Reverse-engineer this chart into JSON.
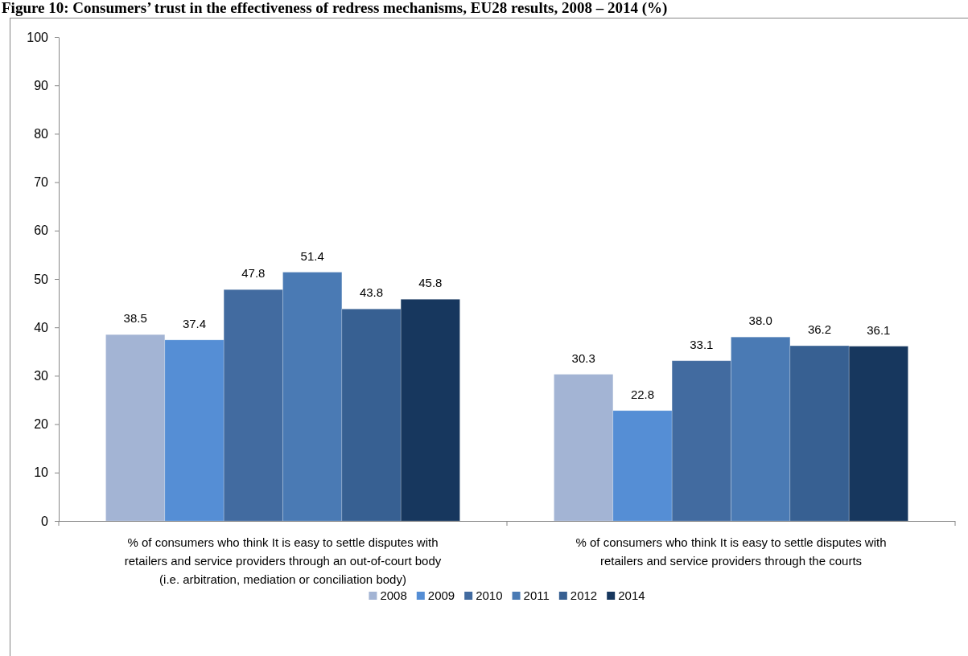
{
  "chart_data": {
    "type": "bar",
    "title": "Figure 10: Consumers’ trust in the effectiveness of redress mechanisms, EU28 results, 2008 – 2014 (%)",
    "categories": [
      "% of consumers who think It is easy to settle disputes with retailers and service providers through an out-of-court body (i.e. arbitration, mediation or conciliation body)",
      "% of consumers who think It is easy to settle disputes with retailers and service providers through the courts"
    ],
    "series": [
      {
        "name": "2008",
        "color": "#a3b4d4",
        "values": [
          38.5,
          30.3
        ],
        "value_labels": [
          "38.5",
          "30.3"
        ]
      },
      {
        "name": "2009",
        "color": "#558ed5",
        "values": [
          37.4,
          22.8
        ],
        "value_labels": [
          "37.4",
          "22.8"
        ]
      },
      {
        "name": "2010",
        "color": "#426ba0",
        "values": [
          47.8,
          33.1
        ],
        "value_labels": [
          "47.8",
          "33.1"
        ]
      },
      {
        "name": "2011",
        "color": "#4a7ab4",
        "values": [
          51.4,
          38.0
        ],
        "value_labels": [
          "51.4",
          "38.0"
        ]
      },
      {
        "name": "2012",
        "color": "#376092",
        "values": [
          43.8,
          36.2
        ],
        "value_labels": [
          "43.8",
          "36.2"
        ]
      },
      {
        "name": "2014",
        "color": "#17375e",
        "values": [
          45.8,
          36.1
        ],
        "value_labels": [
          "45.8",
          "36.1"
        ]
      }
    ],
    "ylim": [
      0,
      100
    ],
    "yticks": [
      0,
      10,
      20,
      30,
      40,
      50,
      60,
      70,
      80,
      90,
      100
    ],
    "grid": false,
    "legend": "bottom"
  }
}
